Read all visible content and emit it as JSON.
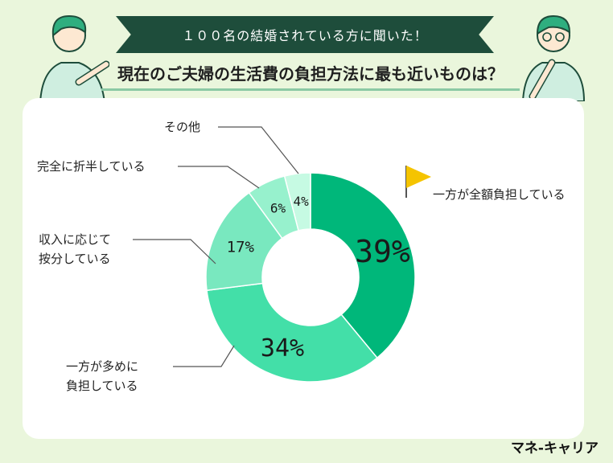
{
  "header": {
    "banner": "１００名の結婚されている方に聞いた！",
    "question": "現在のご夫婦の生活費の負担方法に最も近いものは？"
  },
  "brand": "マネ-キャリア",
  "colors": [
    "#00b77a",
    "#43dfa8",
    "#79e8bf",
    "#97f1cd",
    "#c6fae3"
  ],
  "chart_data": {
    "type": "pie",
    "donut": true,
    "categories": [
      "一方が全額負担している",
      "一方が多めに負担している",
      "収入に応じて按分している",
      "完全に折半している",
      "その他"
    ],
    "label_lines": [
      [
        "一方が全額負担している"
      ],
      [
        "一方が多めに",
        "負担している"
      ],
      [
        "収入に応じて",
        "按分している"
      ],
      [
        "完全に折半している"
      ],
      [
        "その他"
      ]
    ],
    "values": [
      39,
      34,
      17,
      6,
      4
    ],
    "value_labels": [
      "39%",
      "34%",
      "17%",
      "6%",
      "4%"
    ]
  }
}
